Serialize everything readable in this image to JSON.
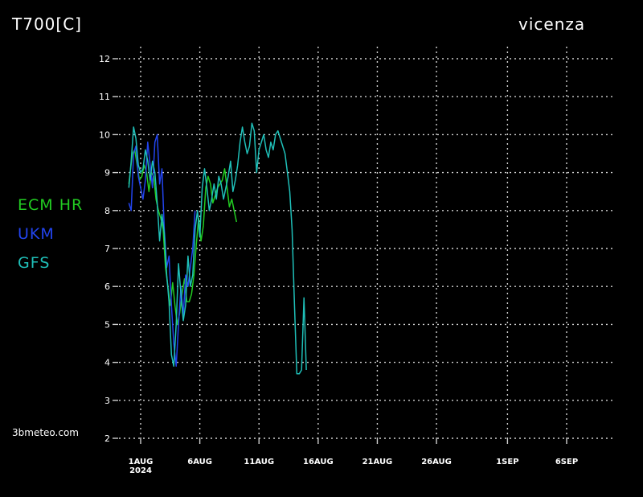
{
  "header": {
    "variable": "T700[C]",
    "location": "vicenza"
  },
  "watermark": "3bmeteo.com",
  "colors": {
    "ecm_hr": "#22cc22",
    "ukm": "#2244ee",
    "gfs": "#1fbfb8",
    "grid": "#cfcfcf",
    "background": "#000000",
    "text": "#ffffff"
  },
  "chart_data": {
    "type": "line",
    "ylim": [
      2,
      12
    ],
    "yticks": [
      2,
      3,
      4,
      5,
      6,
      7,
      8,
      9,
      10,
      11,
      12
    ],
    "xlim": [
      -1.2,
      40.5
    ],
    "x_unit": "days from 1AUG 2024",
    "xticks": [
      {
        "x": 0,
        "label": "1AUG",
        "sublabel": "2024"
      },
      {
        "x": 5,
        "label": "6AUG"
      },
      {
        "x": 10,
        "label": "11AUG"
      },
      {
        "x": 15,
        "label": "16AUG"
      },
      {
        "x": 20,
        "label": "21AUG"
      },
      {
        "x": 25,
        "label": "26AUG"
      },
      {
        "x": 31,
        "label": "1SEP"
      },
      {
        "x": 36,
        "label": "6SEP"
      }
    ],
    "grid": true,
    "series": [
      {
        "name": "ECM HR",
        "color": "#22cc22",
        "points": [
          [
            -1.0,
            8.7
          ],
          [
            -0.7,
            9.5
          ],
          [
            -0.5,
            9.6
          ],
          [
            -0.3,
            9.2
          ],
          [
            -0.1,
            8.8
          ],
          [
            0.1,
            8.9
          ],
          [
            0.3,
            9.2
          ],
          [
            0.5,
            9.0
          ],
          [
            0.7,
            8.5
          ],
          [
            0.9,
            9.0
          ],
          [
            1.1,
            8.9
          ],
          [
            1.3,
            8.3
          ],
          [
            1.5,
            8.0
          ],
          [
            1.7,
            7.8
          ],
          [
            1.9,
            7.5
          ],
          [
            2.1,
            6.5
          ],
          [
            2.3,
            6.0
          ],
          [
            2.5,
            5.5
          ],
          [
            2.7,
            6.1
          ],
          [
            2.9,
            5.5
          ],
          [
            3.1,
            5.0
          ],
          [
            3.3,
            5.3
          ],
          [
            3.5,
            5.8
          ],
          [
            3.7,
            6.2
          ],
          [
            3.9,
            5.6
          ],
          [
            4.1,
            5.6
          ],
          [
            4.3,
            5.8
          ],
          [
            4.5,
            6.3
          ],
          [
            4.7,
            7.1
          ],
          [
            4.9,
            7.8
          ],
          [
            5.1,
            7.2
          ],
          [
            5.3,
            7.6
          ],
          [
            5.5,
            8.6
          ],
          [
            5.7,
            8.9
          ],
          [
            5.9,
            8.7
          ],
          [
            6.1,
            8.2
          ],
          [
            6.3,
            8.4
          ],
          [
            6.5,
            8.6
          ],
          [
            6.7,
            8.7
          ],
          [
            6.9,
            8.8
          ],
          [
            7.1,
            9.1
          ],
          [
            7.3,
            8.6
          ],
          [
            7.5,
            8.1
          ],
          [
            7.7,
            8.3
          ],
          [
            7.9,
            8.0
          ],
          [
            8.1,
            7.7
          ]
        ]
      },
      {
        "name": "UKM",
        "color": "#2244ee",
        "points": [
          [
            -1.0,
            8.2
          ],
          [
            -0.8,
            8.0
          ],
          [
            -0.6,
            9.5
          ],
          [
            -0.4,
            9.7
          ],
          [
            -0.2,
            8.9
          ],
          [
            0.0,
            8.6
          ],
          [
            0.2,
            8.3
          ],
          [
            0.4,
            8.8
          ],
          [
            0.6,
            9.8
          ],
          [
            0.8,
            9.2
          ],
          [
            1.0,
            8.6
          ],
          [
            1.2,
            9.8
          ],
          [
            1.4,
            10.0
          ],
          [
            1.6,
            8.7
          ],
          [
            1.8,
            9.1
          ],
          [
            2.0,
            7.5
          ],
          [
            2.2,
            6.5
          ],
          [
            2.4,
            6.8
          ],
          [
            2.6,
            5.5
          ],
          [
            2.8,
            4.5
          ],
          [
            3.0,
            3.9
          ],
          [
            3.2,
            5.0
          ],
          [
            3.4,
            6.0
          ],
          [
            3.6,
            5.2
          ],
          [
            3.8,
            6.3
          ],
          [
            4.0,
            6.0
          ],
          [
            4.2,
            6.5
          ],
          [
            4.4,
            7.0
          ],
          [
            4.6,
            8.0
          ]
        ]
      },
      {
        "name": "GFS",
        "color": "#1fbfb8",
        "points": [
          [
            -1.0,
            8.6
          ],
          [
            -0.8,
            9.3
          ],
          [
            -0.6,
            10.2
          ],
          [
            -0.4,
            9.9
          ],
          [
            -0.2,
            9.2
          ],
          [
            0.0,
            9.0
          ],
          [
            0.2,
            9.1
          ],
          [
            0.4,
            9.6
          ],
          [
            0.6,
            9.3
          ],
          [
            0.8,
            8.8
          ],
          [
            1.0,
            9.3
          ],
          [
            1.2,
            9.0
          ],
          [
            1.4,
            8.2
          ],
          [
            1.6,
            7.2
          ],
          [
            1.8,
            7.9
          ],
          [
            2.0,
            7.4
          ],
          [
            2.2,
            6.3
          ],
          [
            2.4,
            5.6
          ],
          [
            2.6,
            4.2
          ],
          [
            2.8,
            3.9
          ],
          [
            3.0,
            5.0
          ],
          [
            3.2,
            6.6
          ],
          [
            3.4,
            5.8
          ],
          [
            3.6,
            5.1
          ],
          [
            3.8,
            5.5
          ],
          [
            4.0,
            6.8
          ],
          [
            4.2,
            6.0
          ],
          [
            4.4,
            6.3
          ],
          [
            4.6,
            7.5
          ],
          [
            4.8,
            8.0
          ],
          [
            5.0,
            7.3
          ],
          [
            5.2,
            8.6
          ],
          [
            5.4,
            9.1
          ],
          [
            5.6,
            8.6
          ],
          [
            5.8,
            8.0
          ],
          [
            6.0,
            8.3
          ],
          [
            6.2,
            8.7
          ],
          [
            6.4,
            8.3
          ],
          [
            6.6,
            8.9
          ],
          [
            6.8,
            8.7
          ],
          [
            7.0,
            8.3
          ],
          [
            7.2,
            8.6
          ],
          [
            7.4,
            8.9
          ],
          [
            7.6,
            9.3
          ],
          [
            7.8,
            8.5
          ],
          [
            8.0,
            8.8
          ],
          [
            8.2,
            9.2
          ],
          [
            8.4,
            9.8
          ],
          [
            8.6,
            10.2
          ],
          [
            8.8,
            9.8
          ],
          [
            9.0,
            9.5
          ],
          [
            9.2,
            9.7
          ],
          [
            9.4,
            10.3
          ],
          [
            9.6,
            10.1
          ],
          [
            9.8,
            9.0
          ],
          [
            10.0,
            9.6
          ],
          [
            10.2,
            9.8
          ],
          [
            10.4,
            10.0
          ],
          [
            10.6,
            9.6
          ],
          [
            10.8,
            9.4
          ],
          [
            11.0,
            9.8
          ],
          [
            11.2,
            9.6
          ],
          [
            11.4,
            10.0
          ],
          [
            11.6,
            10.1
          ],
          [
            11.8,
            9.9
          ],
          [
            12.0,
            9.7
          ],
          [
            12.2,
            9.5
          ],
          [
            12.4,
            9.0
          ],
          [
            12.6,
            8.5
          ],
          [
            12.8,
            7.5
          ],
          [
            13.0,
            5.5
          ],
          [
            13.2,
            3.7
          ],
          [
            13.4,
            3.7
          ],
          [
            13.6,
            3.8
          ],
          [
            13.8,
            5.7
          ],
          [
            14.0,
            3.8
          ]
        ]
      }
    ]
  }
}
